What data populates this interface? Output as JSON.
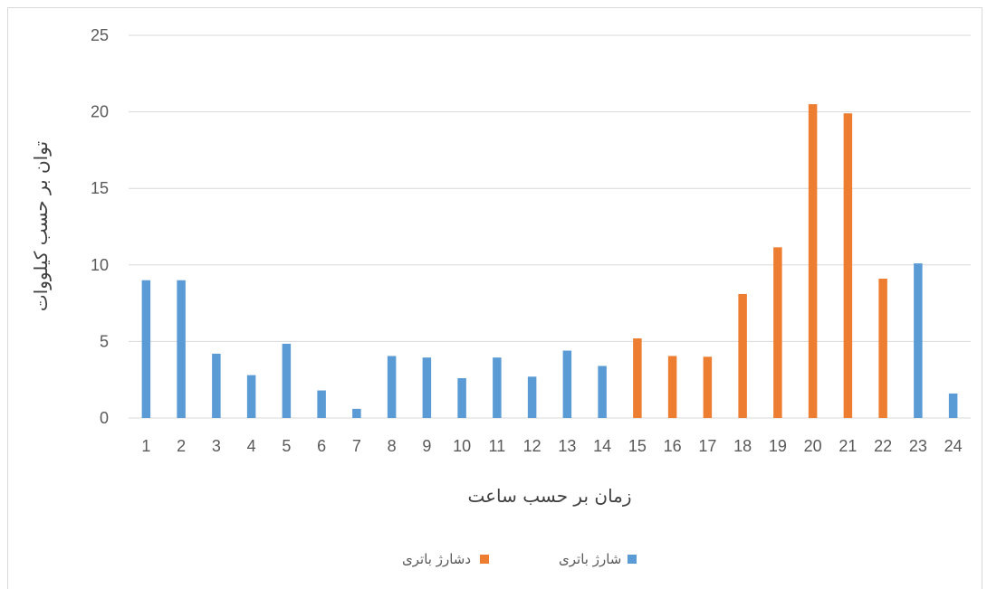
{
  "chart_data": {
    "type": "bar",
    "categories": [
      "1",
      "2",
      "3",
      "4",
      "5",
      "6",
      "7",
      "8",
      "9",
      "10",
      "11",
      "12",
      "13",
      "14",
      "15",
      "16",
      "17",
      "18",
      "19",
      "20",
      "21",
      "22",
      "23",
      "24"
    ],
    "series": [
      {
        "name": "شارژ باتری",
        "color": "#5b9bd5",
        "values": [
          9.0,
          9.0,
          4.2,
          2.8,
          4.85,
          1.8,
          0.6,
          4.05,
          3.95,
          2.6,
          3.95,
          2.7,
          4.4,
          3.4,
          null,
          null,
          null,
          null,
          null,
          null,
          null,
          null,
          10.1,
          1.6
        ]
      },
      {
        "name": "دشارژ باتری",
        "color": "#ed7d31",
        "values": [
          null,
          null,
          null,
          null,
          null,
          null,
          null,
          null,
          null,
          null,
          null,
          null,
          null,
          null,
          5.2,
          4.05,
          4.0,
          8.1,
          11.15,
          20.5,
          19.9,
          9.1,
          null,
          null
        ]
      }
    ],
    "xlabel": "زمان بر حسب ساعت",
    "ylabel": "توان بر حسب کیلووات",
    "ylim": [
      0,
      25
    ],
    "yticks": [
      0,
      5,
      10,
      15,
      20,
      25
    ],
    "grid": true,
    "legend_position": "bottom"
  }
}
